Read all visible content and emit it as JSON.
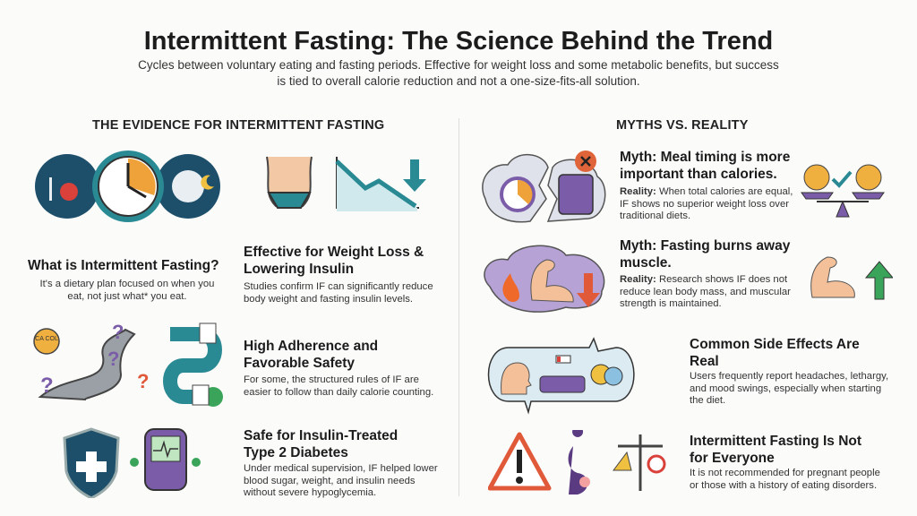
{
  "title": "Intermittent Fasting: The Science Behind the Trend",
  "subtitle": "Cycles between voluntary eating and fasting periods. Effective for weight loss and some metabolic benefits, but success is tied to overall calorie reduction and not a one-size-fits-all solution.",
  "left": {
    "heading": "THE EVIDENCE FOR INTERMITTENT FASTING",
    "items": [
      {
        "title": "What is Intermittent Fasting?",
        "text": "It's a dietary plan focused on when you eat, not just what* you eat."
      },
      {
        "title": "Effective for Weight Loss & Lowering Insulin",
        "text": "Studies confirm IF can significantly reduce body weight and fasting insulin levels."
      },
      {
        "title": "High Adherence and Favorable Safety",
        "text": "For some, the structured rules of IF are easier to follow than daily calorie counting."
      },
      {
        "title": "Safe for Insulin-Treated Type 2 Diabetes",
        "text": "Under medical supervision, IF helped lower blood sugar, weight, and insulin needs without severe hypoglycemia."
      }
    ],
    "cal_label": "CA COL"
  },
  "right": {
    "heading": "MYTHS VS. REALITY",
    "reality_label": "Reality:",
    "items": [
      {
        "title": "Myth: Meal timing is more important than calories.",
        "text": "When total calories are equal, IF shows no superior weight loss over traditional diets."
      },
      {
        "title": "Myth: Fasting burns away muscle.",
        "text": "Research shows IF does not reduce lean body mass, and muscular strength is maintained."
      },
      {
        "title": "Common Side Effects Are Real",
        "text": "Users frequently report headaches, lethargy, and mood swings, especially when starting the diet."
      },
      {
        "title": "Intermittent Fasting Is Not for Everyone",
        "text": "It is not recommended for pregnant people or those with a history of eating disorders."
      }
    ]
  },
  "colors": {
    "teal": "#2a8a94",
    "navy": "#1d4f6b",
    "purple": "#7b5ca8",
    "orange": "#f0a23a",
    "red": "#e05a3a",
    "green": "#3aa55a"
  }
}
